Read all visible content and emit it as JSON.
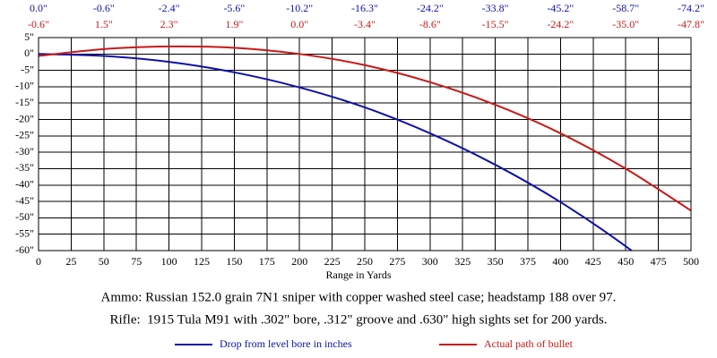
{
  "chart_data": {
    "type": "line",
    "xlabel": "Range in Yards",
    "x": [
      0,
      50,
      100,
      150,
      200,
      250,
      300,
      350,
      400,
      450,
      500
    ],
    "series": [
      {
        "name": "Drop from level bore in inches",
        "color": "#1010a8",
        "values": [
          0.0,
          -0.6,
          -2.4,
          -5.6,
          -10.2,
          -16.3,
          -24.2,
          -33.8,
          -45.2,
          -58.7,
          -74.2
        ],
        "value_labels": [
          "0.0\"",
          "-0.6\"",
          "-2.4\"",
          "-5.6\"",
          "-10.2\"",
          "-16.3\"",
          "-24.2\"",
          "-33.8\"",
          "-45.2\"",
          "-58.7\"",
          "-74.2\""
        ]
      },
      {
        "name": "Actual path of bullet",
        "color": "#c81818",
        "values": [
          -0.6,
          1.5,
          2.3,
          1.9,
          0.0,
          -3.4,
          -8.6,
          -15.5,
          -24.2,
          -35.0,
          -47.8
        ],
        "value_labels": [
          "-0.6\"",
          "1.5\"",
          "2.3\"",
          "1.9\"",
          "0.0\"",
          "-3.4\"",
          "-8.6\"",
          "-15.5\"",
          "-24.2\"",
          "-35.0\"",
          "-47.8\""
        ]
      }
    ],
    "xlim": [
      0,
      500
    ],
    "xticks": [
      0,
      25,
      50,
      75,
      100,
      125,
      150,
      175,
      200,
      225,
      250,
      275,
      300,
      325,
      350,
      375,
      400,
      425,
      450,
      475,
      500
    ],
    "ylim": [
      -60,
      5
    ],
    "yticks": [
      {
        "value": 5,
        "label": "5\""
      },
      {
        "value": 0,
        "label": "0\""
      },
      {
        "value": -5,
        "label": "-5\""
      },
      {
        "value": -10,
        "label": "-10\""
      },
      {
        "value": -15,
        "label": "-15\""
      },
      {
        "value": -20,
        "label": "-20\""
      },
      {
        "value": -25,
        "label": "-25\""
      },
      {
        "value": -30,
        "label": "-30\""
      },
      {
        "value": -35,
        "label": "-35\""
      },
      {
        "value": -40,
        "label": "-40\""
      },
      {
        "value": -45,
        "label": "-45\""
      },
      {
        "value": -50,
        "label": "-50\""
      },
      {
        "value": -55,
        "label": "-55\""
      },
      {
        "value": -60,
        "label": "-60\""
      }
    ],
    "grid": true,
    "annotations": [
      "Ammo: Russian 152.0 grain 7N1 sniper with copper washed steel case; headstamp 188 over 97.",
      "Rifle:  1915 Tula M91 with .302\" bore, .312\" groove and .630\" high sights set for 200 yards."
    ]
  }
}
